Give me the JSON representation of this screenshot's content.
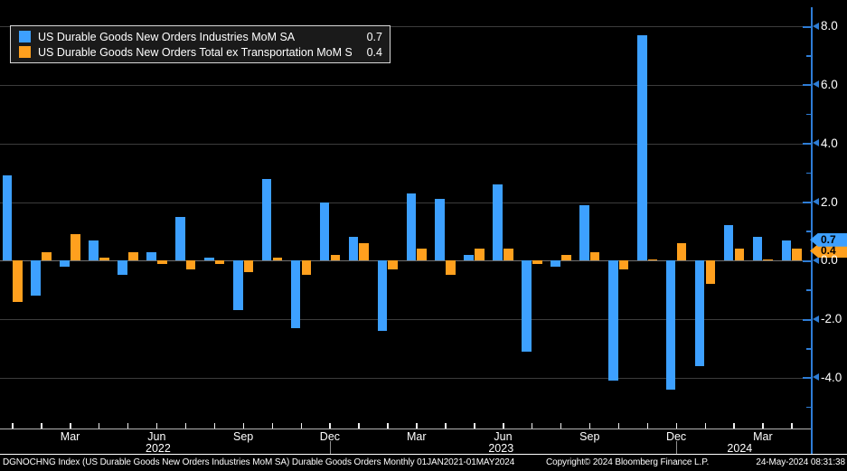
{
  "colors": {
    "background": "#000000",
    "grid": "#3c3c3c",
    "zero_line": "#6f6f6f",
    "axis": "#2e7dd6",
    "axis_text": "#ffffff",
    "x_baseline": "#b5b5b5",
    "bar_blue": "#3da0ff",
    "bar_orange": "#ffa01e"
  },
  "legend": {
    "items": [
      {
        "swatch": "blue-square-icon"
      },
      {
        "swatch": "orange-square-icon"
      }
    ]
  },
  "chart_data": {
    "type": "bar",
    "title": "",
    "x_categories": [
      "Jan 2022",
      "Feb 2022",
      "Mar 2022",
      "Apr 2022",
      "May 2022",
      "Jun 2022",
      "Jul 2022",
      "Aug 2022",
      "Sep 2022",
      "Oct 2022",
      "Nov 2022",
      "Dec 2022",
      "Jan 2023",
      "Feb 2023",
      "Mar 2023",
      "Apr 2023",
      "May 2023",
      "Jun 2023",
      "Jul 2023",
      "Aug 2023",
      "Sep 2023",
      "Oct 2023",
      "Nov 2023",
      "Dec 2023",
      "Jan 2024",
      "Feb 2024",
      "Mar 2024",
      "Apr 2024"
    ],
    "series": [
      {
        "name": "US Durable Goods New Orders Industries MoM SA",
        "color": "#3da0ff",
        "current_value": 0.7,
        "values": [
          2.9,
          -1.2,
          -0.2,
          0.7,
          -0.5,
          0.3,
          1.5,
          0.1,
          -1.7,
          2.8,
          -2.3,
          2.0,
          0.8,
          -2.4,
          2.3,
          2.1,
          0.2,
          2.6,
          -3.1,
          -0.2,
          1.9,
          -4.1,
          7.7,
          -4.4,
          -3.6,
          1.2,
          0.8,
          0.7
        ]
      },
      {
        "name": "US Durable Goods New Orders Total ex Transportation MoM SA",
        "color": "#ffa01e",
        "current_value": 0.4,
        "values": [
          -1.4,
          0.3,
          0.9,
          0.1,
          0.3,
          -0.1,
          -0.3,
          -0.1,
          -0.4,
          0.1,
          -0.5,
          0.2,
          0.6,
          -0.3,
          0.4,
          -0.5,
          0.4,
          0.4,
          -0.1,
          0.2,
          0.3,
          -0.3,
          0.0,
          0.6,
          -0.8,
          0.4,
          0.0,
          0.4
        ]
      }
    ],
    "y_axis": {
      "tick_values": [
        8,
        6,
        4,
        2,
        0,
        -2,
        -4
      ],
      "minor_tick_values": [
        7,
        5,
        3,
        1,
        -1,
        -3,
        -5
      ],
      "range_shown": [
        -5.7,
        8.6
      ],
      "side": "right"
    },
    "x_axis": {
      "month_labels": [
        {
          "text": "Mar",
          "slot": 2
        },
        {
          "text": "Jun",
          "slot": 5
        },
        {
          "text": "Sep",
          "slot": 8
        },
        {
          "text": "Dec",
          "slot": 11
        },
        {
          "text": "Mar",
          "slot": 14
        },
        {
          "text": "Jun",
          "slot": 17
        },
        {
          "text": "Sep",
          "slot": 20
        },
        {
          "text": "Dec",
          "slot": 23
        },
        {
          "text": "Mar",
          "slot": 26
        }
      ],
      "year_labels": [
        {
          "text": "2022",
          "slot": 5.05
        },
        {
          "text": "2023",
          "slot": 16.93
        },
        {
          "text": "2024",
          "slot": 25.2
        }
      ],
      "year_divider_slots": [
        11,
        23
      ]
    },
    "legend_position": "top-left",
    "grid": true
  },
  "footer": {
    "description": "DGNOCHNG Index (US Durable Goods New Orders Industries MoM SA) Durable Goods Orders  Monthly 01JAN2021-01MAY2024",
    "copyright": "Copyright© 2024 Bloomberg Finance L.P.",
    "timestamp": "24-May-2024 08:31:38"
  }
}
